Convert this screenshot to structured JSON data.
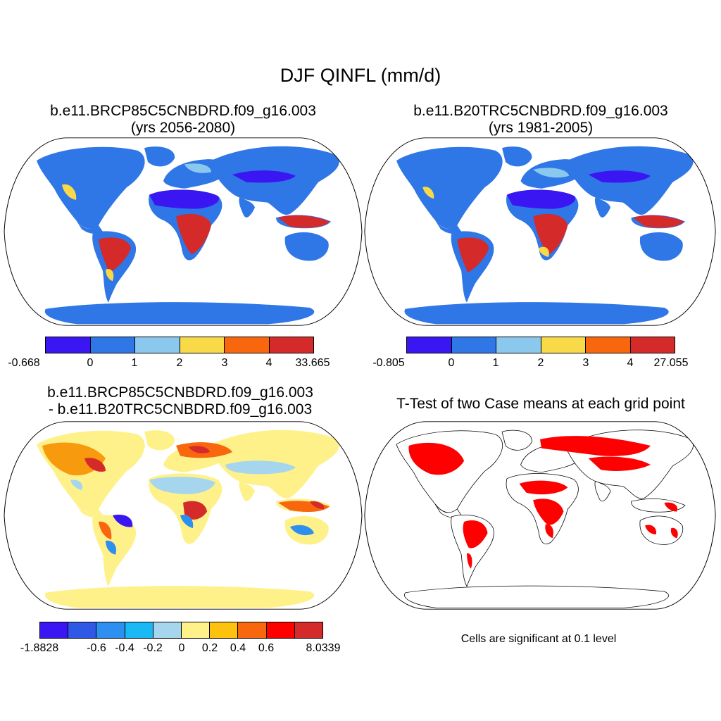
{
  "title": "DJF QINFL (mm/d)",
  "colors": {
    "purple": "#3a17f2",
    "blue": "#2f76e6",
    "lightblue": "#8ac8ee",
    "yellow": "#f8da48",
    "orange": "#f8660e",
    "red": "#d42a2a",
    "diff_purple": "#3a17f2",
    "diff_blue2": "#3058e6",
    "diff_blue": "#2d8ff0",
    "diff_cyan": "#1ab8f5",
    "diff_lightblue": "#a6d6ee",
    "diff_paleyellow": "#fff18a",
    "diff_gold": "#fdc20e",
    "diff_darkorange": "#f89a0e",
    "diff_orange": "#f8660e",
    "diff_red": "#ff0000",
    "diff_darkred": "#d42a2a",
    "sig_red": "#ff0000"
  },
  "panels": {
    "future": {
      "title_line1": "b.e11.BRCP85C5CNBDRD.f09_g16.003",
      "title_line2": "(yrs 2056-2080)",
      "colorbar_ticks": [
        "-0.668",
        "0",
        "1",
        "2",
        "3",
        "4",
        "33.665"
      ]
    },
    "historical": {
      "title_line1": "b.e11.B20TRC5CNBDRD.f09_g16.003",
      "title_line2": "(yrs 1981-2005)",
      "colorbar_ticks": [
        "-0.805",
        "0",
        "1",
        "2",
        "3",
        "4",
        "27.055"
      ]
    },
    "difference": {
      "title_line1": "b.e11.BRCP85C5CNBDRD.f09_g16.003",
      "title_line2": "- b.e11.B20TRC5CNBDRD.f09_g16.003",
      "colorbar_ticks": [
        "-1.8828",
        "-0.6",
        "-0.4",
        "-0.2",
        "0",
        "0.2",
        "0.4",
        "0.6",
        "8.0339"
      ]
    },
    "ttest": {
      "title": "T-Test of two Case means at each grid point",
      "note": "Cells are significant at 0.1 level"
    }
  }
}
